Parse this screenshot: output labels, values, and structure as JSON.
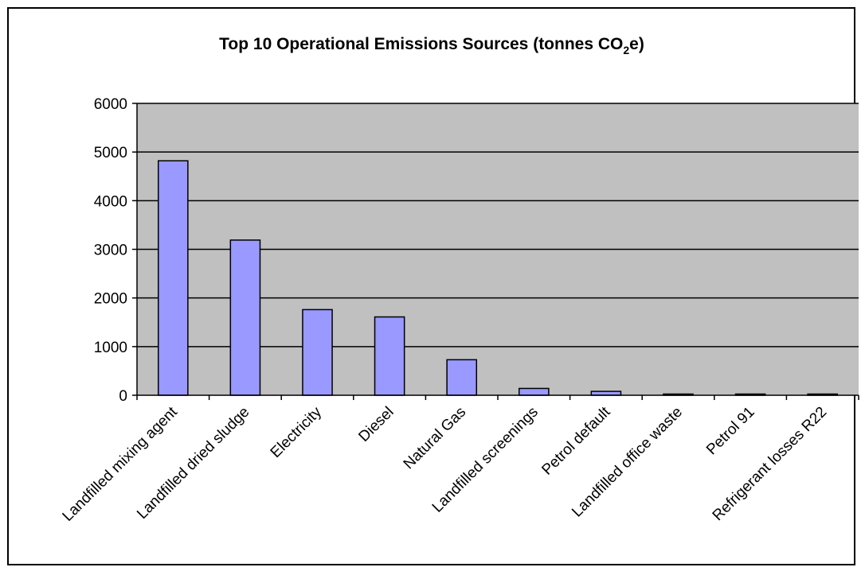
{
  "chart_data": {
    "type": "bar",
    "title": "Top 10 Operational Emissions Sources (tonnes CO",
    "title_subscript": "2",
    "title_suffix": "e)",
    "categories": [
      "Landfilled mixing agent",
      "Landfilled dried sludge",
      "Electricity",
      "Diesel",
      "Natural Gas",
      "Landfilled screenings",
      "Petrol default",
      "Landfilled office waste",
      "Petrol 91",
      "Refrigerant losses R22"
    ],
    "series": [
      {
        "values": [
          4820,
          3190,
          1760,
          1610,
          730,
          140,
          80,
          20,
          15,
          15
        ]
      }
    ],
    "ylim": [
      0,
      6000
    ],
    "yticks": [
      "0",
      "1000",
      "2000",
      "3000",
      "4000",
      "5000",
      "6000"
    ],
    "xlabel": "",
    "ylabel": "",
    "grid": true,
    "legend": "none",
    "colors": {
      "bar_fill": "#9999ff",
      "bar_stroke": "#000000",
      "plot_background": "#c0c0c0",
      "gridline": "#000000"
    }
  }
}
